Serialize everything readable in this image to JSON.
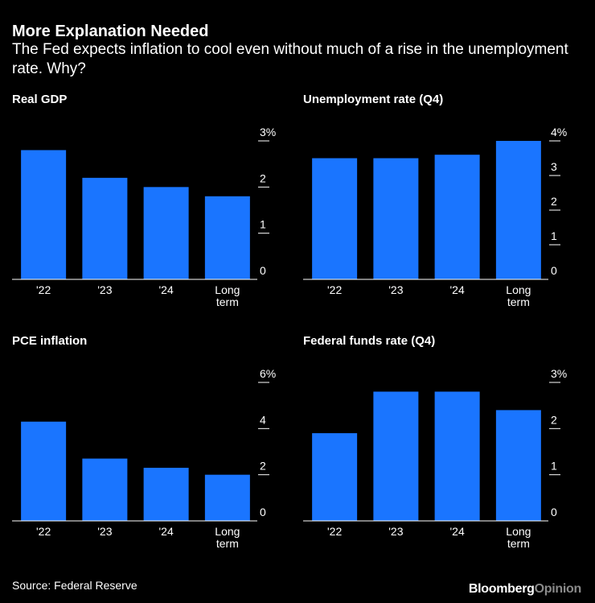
{
  "header": {
    "title": "More Explanation Needed",
    "subtitle": "The Fed expects inflation to cool even without much of a rise in the unemployment rate. Why?"
  },
  "footer": {
    "source": "Source: Federal Reserve",
    "brand_main": "Bloomberg",
    "brand_sub": "Opinion"
  },
  "colors": {
    "bar": "#1a75ff",
    "axis": "#ffffff",
    "background": "#000000"
  },
  "chart_data": [
    {
      "type": "bar",
      "title": "Real GDP",
      "categories": [
        [
          "'22"
        ],
        [
          "'23"
        ],
        [
          "'24"
        ],
        [
          "Long",
          "term"
        ]
      ],
      "values": [
        2.8,
        2.2,
        2.0,
        1.8
      ],
      "ylim": [
        0,
        3
      ],
      "yticks": [
        0,
        1,
        2,
        3
      ],
      "ytick_labels": [
        "0",
        "1",
        "2",
        "3%"
      ]
    },
    {
      "type": "bar",
      "title": "Unemployment rate (Q4)",
      "categories": [
        [
          "'22"
        ],
        [
          "'23"
        ],
        [
          "'24"
        ],
        [
          "Long",
          "term"
        ]
      ],
      "values": [
        3.5,
        3.5,
        3.6,
        4.0
      ],
      "ylim": [
        0,
        4
      ],
      "yticks": [
        0,
        1,
        2,
        3,
        4
      ],
      "ytick_labels": [
        "0",
        "1",
        "2",
        "3",
        "4%"
      ]
    },
    {
      "type": "bar",
      "title": "PCE inflation",
      "categories": [
        [
          "'22"
        ],
        [
          "'23"
        ],
        [
          "'24"
        ],
        [
          "Long",
          "term"
        ]
      ],
      "values": [
        4.3,
        2.7,
        2.3,
        2.0
      ],
      "ylim": [
        0,
        6
      ],
      "yticks": [
        0,
        2,
        4,
        6
      ],
      "ytick_labels": [
        "0",
        "2",
        "4",
        "6%"
      ]
    },
    {
      "type": "bar",
      "title": "Federal funds rate (Q4)",
      "categories": [
        [
          "'22"
        ],
        [
          "'23"
        ],
        [
          "'24"
        ],
        [
          "Long",
          "term"
        ]
      ],
      "values": [
        1.9,
        2.8,
        2.8,
        2.4
      ],
      "ylim": [
        0,
        3
      ],
      "yticks": [
        0,
        1,
        2,
        3
      ],
      "ytick_labels": [
        "0",
        "1",
        "2",
        "3%"
      ]
    }
  ]
}
